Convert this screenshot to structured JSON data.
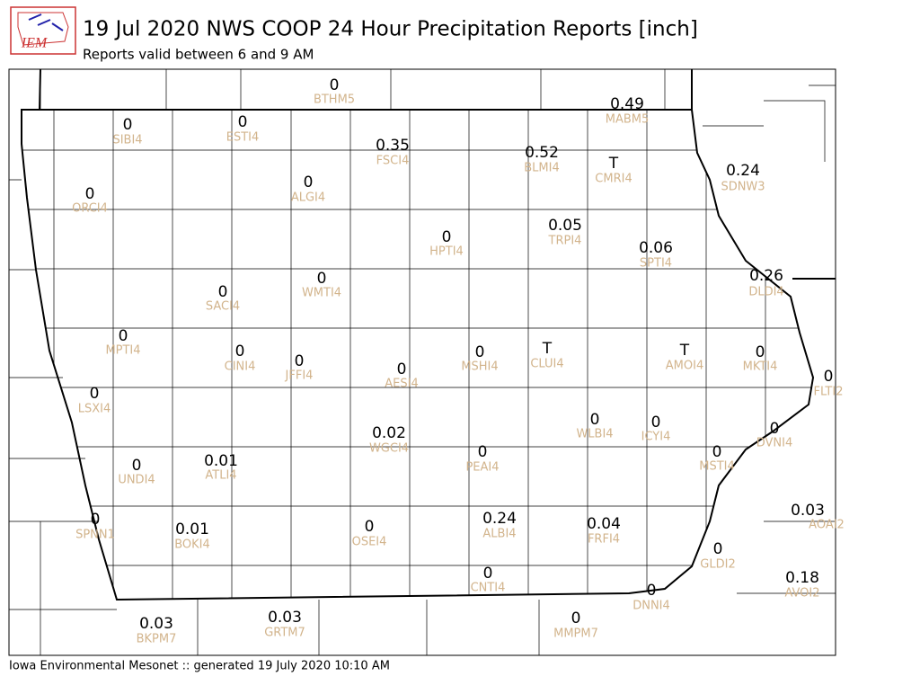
{
  "logo": "IEM",
  "title": "19 Jul 2020 NWS COOP 24 Hour Precipitation Reports [inch]",
  "subtitle": "Reports valid between 6 and 9 AM",
  "footer": "Iowa Environmental Mesonet :: generated 19 July 2020 10:10 AM",
  "stations": [
    {
      "id": "BTHM5",
      "value": "0"
    },
    {
      "id": "MABM5",
      "value": "0.49"
    },
    {
      "id": "SIBI4",
      "value": "0"
    },
    {
      "id": "ESTI4",
      "value": "0"
    },
    {
      "id": "FSCI4",
      "value": "0.35"
    },
    {
      "id": "BLMI4",
      "value": "0.52"
    },
    {
      "id": "CMRI4",
      "value": "T"
    },
    {
      "id": "SDNW3",
      "value": "0.24"
    },
    {
      "id": "ORCI4",
      "value": "0"
    },
    {
      "id": "ALGI4",
      "value": "0"
    },
    {
      "id": "HPTI4",
      "value": "0"
    },
    {
      "id": "TRPI4",
      "value": "0.05"
    },
    {
      "id": "SPTI4",
      "value": "0.06"
    },
    {
      "id": "DLDI4",
      "value": "0.26"
    },
    {
      "id": "SACI4",
      "value": "0"
    },
    {
      "id": "WMTI4",
      "value": "0"
    },
    {
      "id": "MPTI4",
      "value": "0"
    },
    {
      "id": "CINI4",
      "value": "0"
    },
    {
      "id": "JFFI4",
      "value": "0"
    },
    {
      "id": "AESI4",
      "value": "0"
    },
    {
      "id": "MSHI4",
      "value": "0"
    },
    {
      "id": "CLUI4",
      "value": "T"
    },
    {
      "id": "AMOI4",
      "value": "T"
    },
    {
      "id": "MKTI4",
      "value": "0"
    },
    {
      "id": "FLTI2",
      "value": "0"
    },
    {
      "id": "LSXI4",
      "value": "0"
    },
    {
      "id": "WLBI4",
      "value": "0"
    },
    {
      "id": "ICYI4",
      "value": "0"
    },
    {
      "id": "DVNI4",
      "value": "0"
    },
    {
      "id": "WGCI4",
      "value": "0.02"
    },
    {
      "id": "PEAI4",
      "value": "0"
    },
    {
      "id": "MSTI4",
      "value": "0"
    },
    {
      "id": "UNDI4",
      "value": "0"
    },
    {
      "id": "ATLI4",
      "value": "0.01"
    },
    {
      "id": "AOAI2",
      "value": "0.03"
    },
    {
      "id": "SPNN1",
      "value": "0"
    },
    {
      "id": "BOKI4",
      "value": "0.01"
    },
    {
      "id": "OSEI4",
      "value": "0"
    },
    {
      "id": "ALBI4",
      "value": "0.24"
    },
    {
      "id": "FRFI4",
      "value": "0.04"
    },
    {
      "id": "GLDI2",
      "value": "0"
    },
    {
      "id": "CNTI4",
      "value": "0"
    },
    {
      "id": "AVOI2",
      "value": "0.18"
    },
    {
      "id": "DNNI4",
      "value": "0"
    },
    {
      "id": "BKPM7",
      "value": "0.03"
    },
    {
      "id": "GRTM7",
      "value": "0.03"
    },
    {
      "id": "MMPM7",
      "value": "0"
    }
  ]
}
